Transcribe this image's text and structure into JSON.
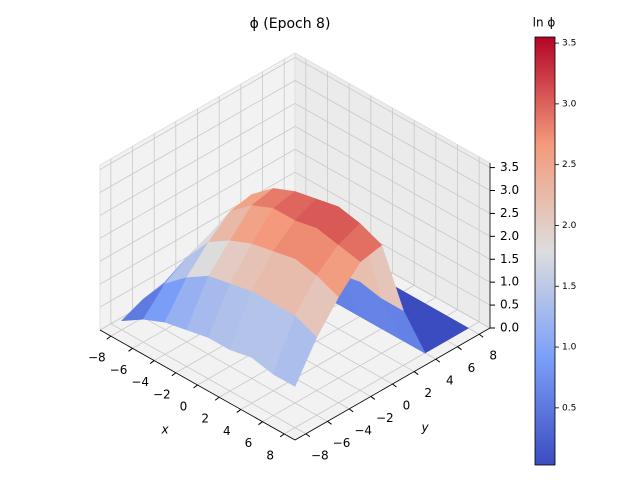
{
  "chart_data": {
    "type": "surface",
    "title": "ϕ (Epoch 8)",
    "xlabel": "x",
    "ylabel": "y",
    "x": [
      -8,
      -6,
      -4,
      -2,
      0,
      2,
      4,
      6,
      8
    ],
    "y": [
      -8,
      -6,
      -4,
      -2,
      0,
      2,
      4,
      6,
      8
    ],
    "z": [
      [
        0.2,
        0.5,
        0.7,
        0.8,
        0.9,
        0.9,
        1.0,
        0.9,
        0.9
      ],
      [
        0.4,
        1.0,
        1.4,
        1.7,
        1.8,
        1.9,
        1.9,
        1.9,
        1.7
      ],
      [
        0.5,
        1.3,
        1.9,
        2.2,
        2.4,
        2.5,
        2.6,
        2.5,
        2.3
      ],
      [
        0.6,
        1.5,
        2.3,
        2.7,
        2.9,
        2.9,
        3.0,
        2.9,
        2.8
      ],
      [
        0.6,
        1.6,
        2.4,
        2.8,
        3.0,
        3.1,
        3.2,
        3.1,
        2.9
      ],
      [
        0.2,
        0.6,
        1.0,
        1.1,
        1.2,
        1.2,
        1.3,
        1.2,
        1.2
      ],
      [
        0,
        0,
        0,
        0,
        0,
        0,
        0,
        0,
        0
      ],
      [
        0,
        0,
        0,
        0,
        0,
        0,
        0,
        0,
        0
      ],
      [
        0,
        0,
        0,
        0,
        0,
        0,
        0,
        0,
        0
      ]
    ],
    "xlim": [
      -9,
      9
    ],
    "ylim": [
      -9,
      9
    ],
    "zlim": [
      0,
      3.6
    ],
    "xticks": [
      {
        "value": -8,
        "label": "−8"
      },
      {
        "value": -6,
        "label": "−6"
      },
      {
        "value": -4,
        "label": "−4"
      },
      {
        "value": -2,
        "label": "−2"
      },
      0,
      2,
      4,
      6,
      8
    ],
    "yticks": [
      {
        "value": -8,
        "label": "−8"
      },
      {
        "value": -6,
        "label": "−6"
      },
      {
        "value": -4,
        "label": "−4"
      },
      {
        "value": -2,
        "label": "−2"
      },
      0,
      2,
      4,
      6,
      8
    ],
    "zticks": [
      {
        "value": 0,
        "label": "0.0"
      },
      0.5,
      {
        "value": 1,
        "label": "1.0"
      },
      1.5,
      {
        "value": 2,
        "label": "2.0"
      },
      2.5,
      {
        "value": 3,
        "label": "3.0"
      },
      3.5
    ],
    "colormap": "coolwarm",
    "colorbar": {
      "label": "ln ϕ",
      "clim": [
        0.03,
        3.55
      ],
      "ticks": [
        0.5,
        {
          "value": 1,
          "label": "1.0"
        },
        1.5,
        {
          "value": 2,
          "label": "2.0"
        },
        2.5,
        {
          "value": 3,
          "label": "3.0"
        },
        3.5
      ]
    }
  }
}
